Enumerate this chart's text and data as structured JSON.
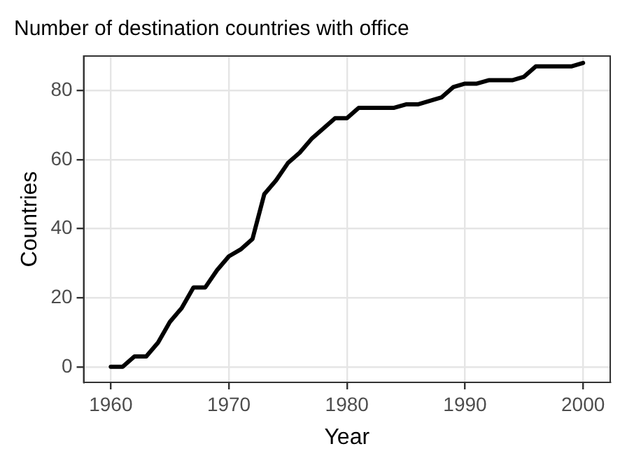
{
  "chart_data": {
    "type": "line",
    "title": "Number of destination countries with office",
    "xlabel": "Year",
    "ylabel": "Countries",
    "x": [
      1960,
      1961,
      1962,
      1963,
      1964,
      1965,
      1966,
      1967,
      1968,
      1969,
      1970,
      1971,
      1972,
      1973,
      1974,
      1975,
      1976,
      1977,
      1978,
      1979,
      1980,
      1981,
      1982,
      1983,
      1984,
      1985,
      1986,
      1987,
      1988,
      1989,
      1990,
      1991,
      1992,
      1993,
      1994,
      1995,
      1996,
      1997,
      1998,
      1999,
      2000
    ],
    "series": [
      {
        "color": "#000000",
        "values": [
          0,
          0,
          3,
          3,
          7,
          13,
          17,
          23,
          23,
          28,
          32,
          34,
          37,
          50,
          54,
          59,
          62,
          66,
          69,
          72,
          72,
          75,
          75,
          75,
          75,
          76,
          76,
          77,
          78,
          81,
          82,
          82,
          83,
          83,
          83,
          84,
          87,
          87,
          87,
          87,
          88
        ]
      }
    ],
    "xlim": [
      1957.7,
      2002.3
    ],
    "xticks": [
      1960,
      1970,
      1980,
      1990,
      2000
    ],
    "ylim": [
      -4.5,
      90
    ],
    "yticks": [
      0,
      20,
      40,
      60,
      80
    ],
    "grid": true,
    "legend": false,
    "marker": "none",
    "line_style": "solid"
  }
}
